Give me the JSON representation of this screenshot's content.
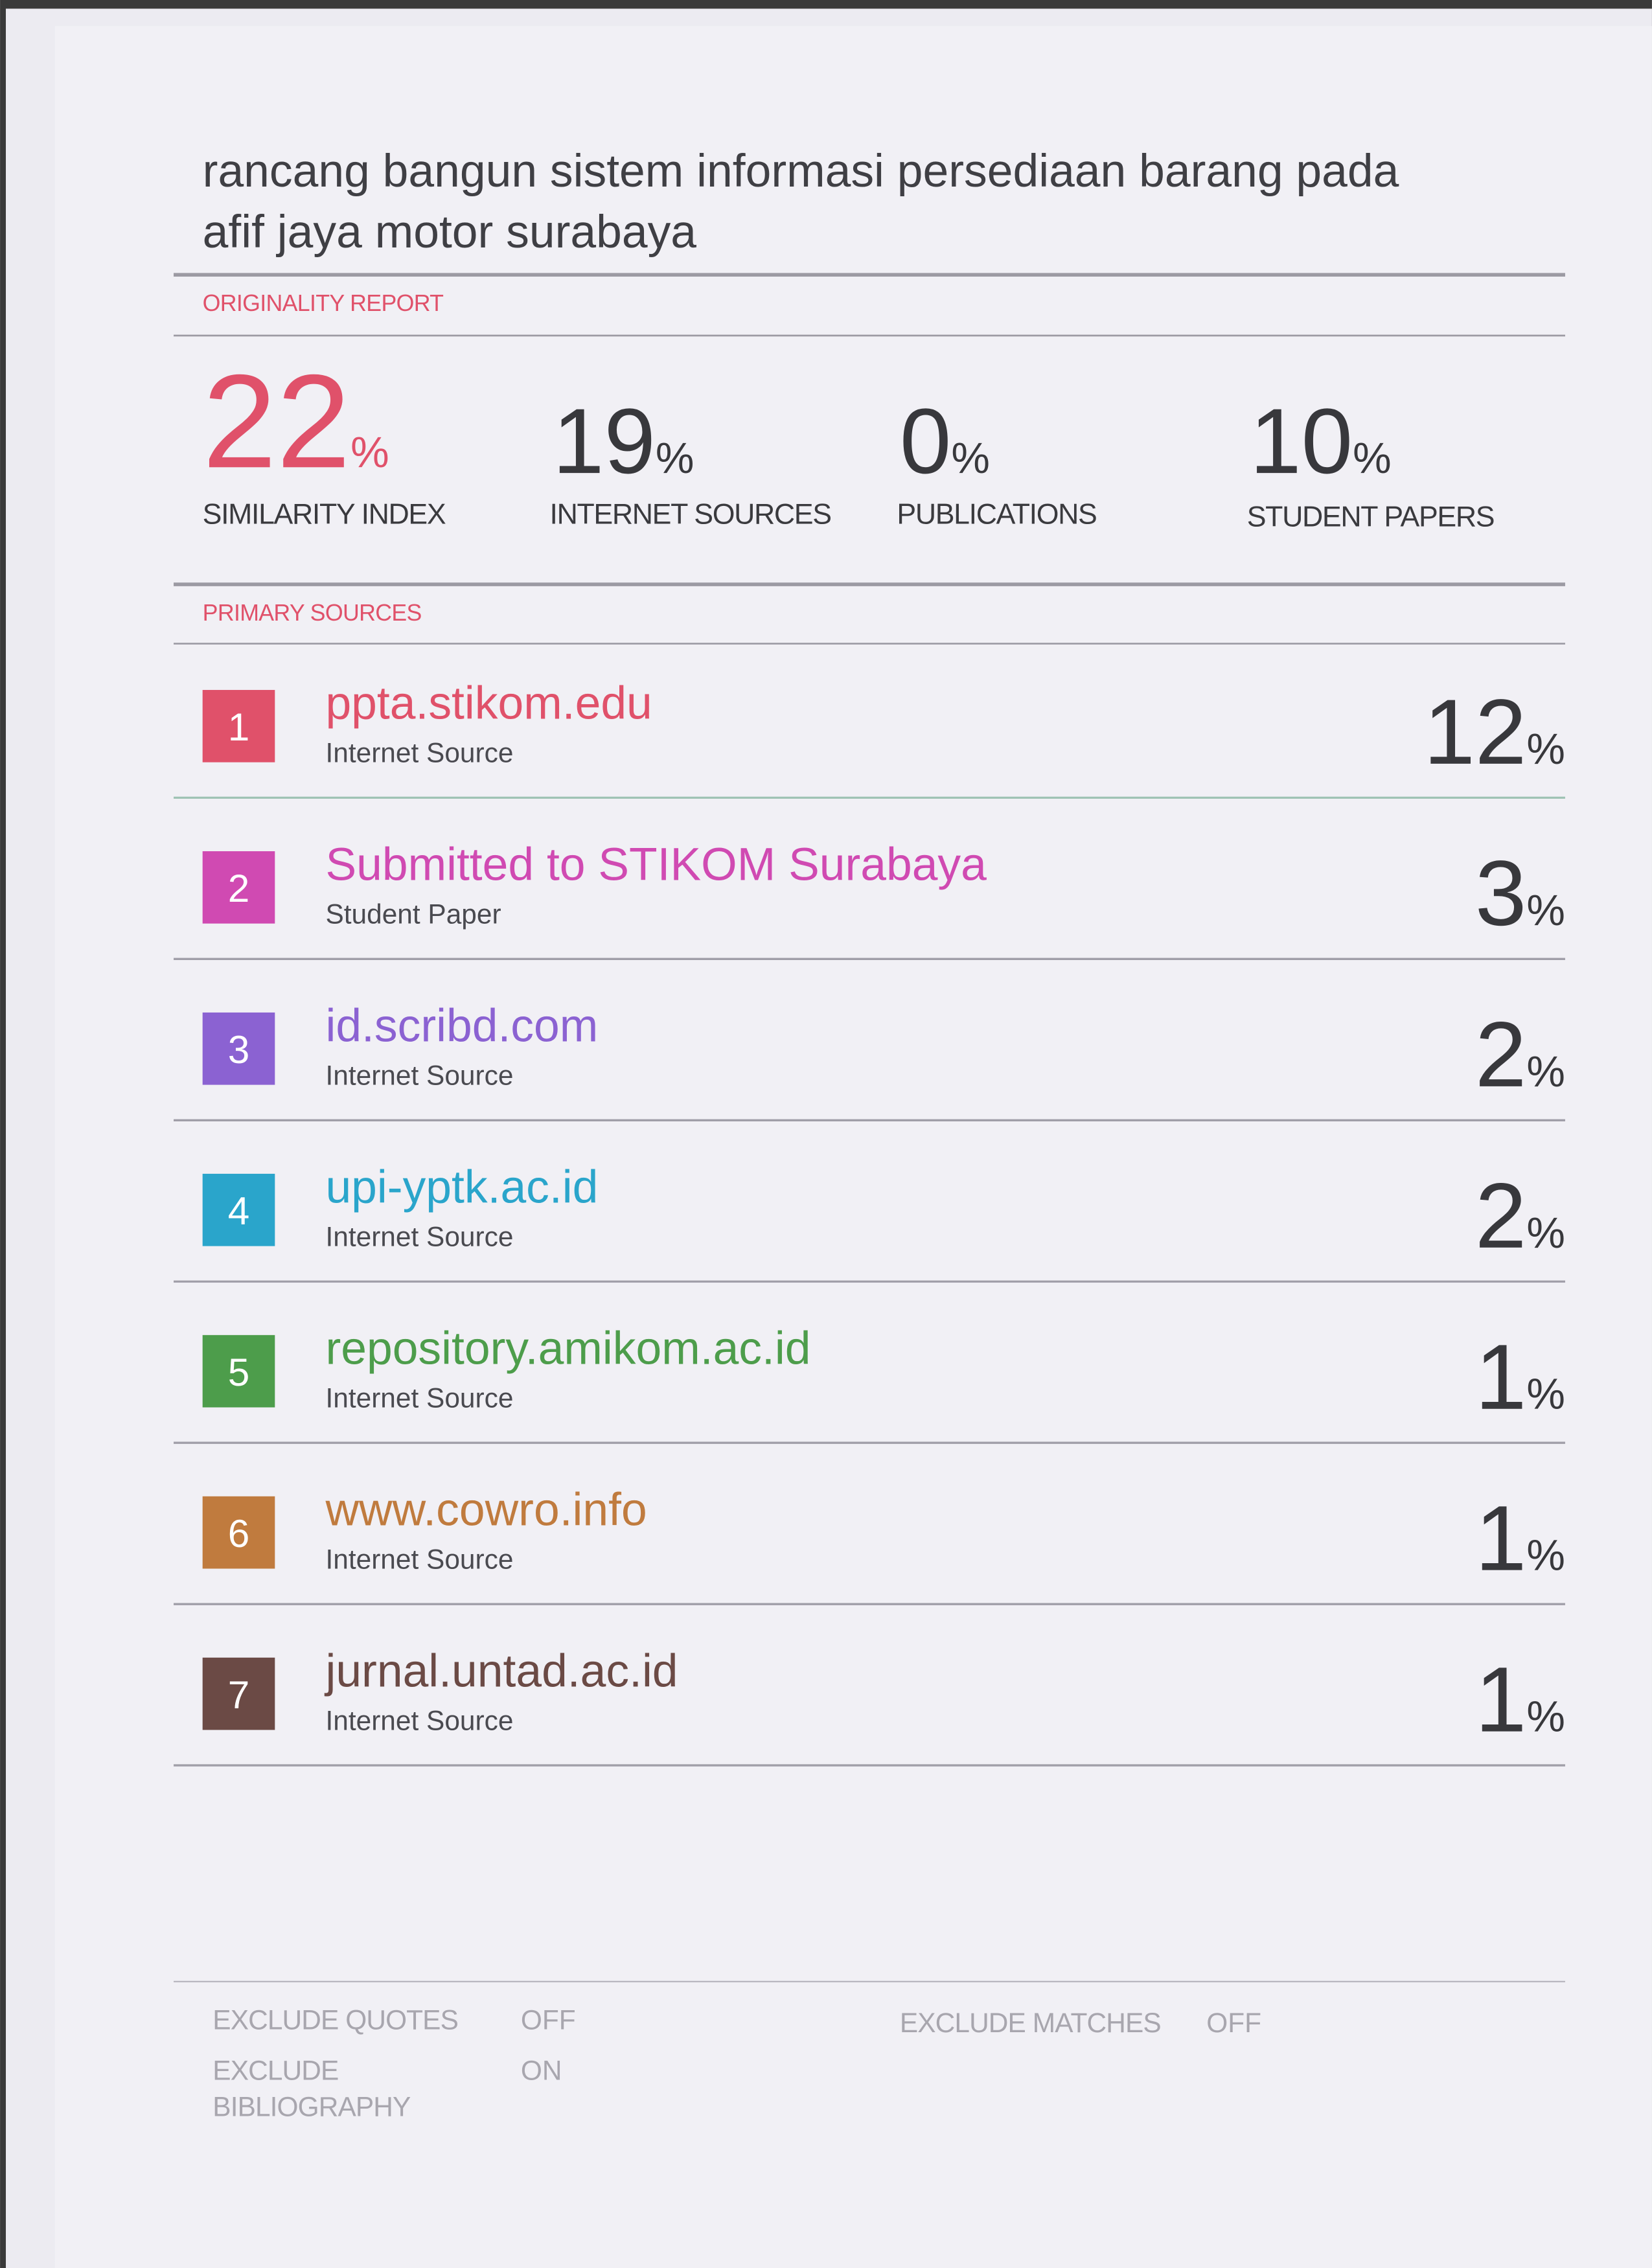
{
  "header": {
    "title_lines": [
      "rancang bangun sistem informasi persediaan barang pada",
      "afif jaya motor surabaya"
    ]
  },
  "percent_symbol": "%",
  "originality": {
    "heading": "ORIGINALITY REPORT",
    "scores": [
      {
        "value": 22,
        "label": "SIMILARITY INDEX"
      },
      {
        "value": 19,
        "label": "INTERNET SOURCES"
      },
      {
        "value": 0,
        "label": "PUBLICATIONS"
      },
      {
        "value": 10,
        "label": "STUDENT PAPERS"
      }
    ]
  },
  "primary_sources": {
    "heading": "PRIMARY SOURCES",
    "sources": [
      {
        "rank": 1,
        "name": "ppta.stikom.edu",
        "kind": "Internet Source",
        "percent": 12,
        "color": "#e0516a"
      },
      {
        "rank": 2,
        "name": "Submitted to STIKOM Surabaya",
        "kind": "Student Paper",
        "percent": 3,
        "color": "#d04ab2"
      },
      {
        "rank": 3,
        "name": "id.scribd.com",
        "kind": "Internet Source",
        "percent": 2,
        "color": "#8b62d2"
      },
      {
        "rank": 4,
        "name": "upi-yptk.ac.id",
        "kind": "Internet Source",
        "percent": 2,
        "color": "#2aa5cb"
      },
      {
        "rank": 5,
        "name": "repository.amikom.ac.id",
        "kind": "Internet Source",
        "percent": 1,
        "color": "#4d9d4b"
      },
      {
        "rank": 6,
        "name": "www.cowro.info",
        "kind": "Internet Source",
        "percent": 1,
        "color": "#c07b3e"
      },
      {
        "rank": 7,
        "name": "jurnal.untad.ac.id",
        "kind": "Internet Source",
        "percent": 1,
        "color": "#6b4a45"
      }
    ]
  },
  "footer": {
    "settings": [
      {
        "label_lines": [
          "EXCLUDE QUOTES"
        ],
        "state": "OFF"
      },
      {
        "label_lines": [
          "EXCLUDE",
          "BIBLIOGRAPHY"
        ],
        "state": "ON"
      },
      {
        "label_lines": [
          "EXCLUDE MATCHES"
        ],
        "state": "OFF"
      }
    ]
  }
}
